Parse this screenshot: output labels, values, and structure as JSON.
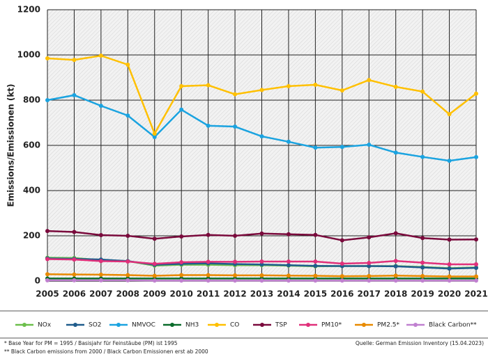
{
  "chart_data": {
    "type": "line",
    "y_label": "Emissions/Emissionen (kt)",
    "x": [
      2005,
      2006,
      2007,
      2008,
      2009,
      2010,
      2011,
      2012,
      2013,
      2014,
      2015,
      2016,
      2017,
      2018,
      2019,
      2020,
      2021
    ],
    "xlim": [
      2005,
      2021
    ],
    "xticks": [
      2005,
      2006,
      2007,
      2008,
      2009,
      2010,
      2011,
      2012,
      2013,
      2014,
      2015,
      2016,
      2017,
      2018,
      2019,
      2020,
      2021
    ],
    "ylim": [
      0,
      1200
    ],
    "yticks": [
      0,
      200,
      400,
      600,
      800,
      1000,
      1200
    ],
    "grid": true,
    "series": [
      {
        "name": "NOx",
        "color": "#6cbf4b",
        "values": [
          103,
          102,
          92,
          88,
          68,
          72,
          72,
          70,
          70,
          68,
          65,
          66,
          66,
          66,
          62,
          57,
          60
        ]
      },
      {
        "name": "SO2",
        "color": "#1f5c8c",
        "values": [
          100,
          98,
          95,
          88,
          72,
          76,
          78,
          75,
          73,
          70,
          67,
          66,
          66,
          65,
          60,
          55,
          58
        ]
      },
      {
        "name": "NMVOC",
        "color": "#1aa3e0",
        "values": [
          800,
          822,
          775,
          732,
          637,
          758,
          687,
          683,
          640,
          616,
          590,
          593,
          603,
          568,
          549,
          532,
          548
        ]
      },
      {
        "name": "NH3",
        "color": "#0a6b2a",
        "values": [
          11,
          11,
          11,
          11,
          11,
          11,
          11,
          11,
          11,
          11,
          11,
          11,
          11,
          11,
          11,
          11,
          11
        ]
      },
      {
        "name": "CO",
        "color": "#ffc000",
        "values": [
          985,
          978,
          997,
          957,
          652,
          862,
          866,
          826,
          845,
          862,
          868,
          843,
          889,
          859,
          838,
          738,
          829
        ]
      },
      {
        "name": "TSP",
        "color": "#7a0a3c",
        "values": [
          221,
          217,
          203,
          200,
          187,
          197,
          204,
          200,
          210,
          207,
          204,
          180,
          193,
          211,
          190,
          183,
          184
        ]
      },
      {
        "name": "PM10*",
        "color": "#e0307a",
        "values": [
          97,
          95,
          88,
          86,
          76,
          83,
          85,
          85,
          86,
          86,
          86,
          77,
          80,
          89,
          81,
          74,
          74
        ]
      },
      {
        "name": "PM2.5*",
        "color": "#e88a00",
        "values": [
          30,
          29,
          28,
          26,
          23,
          26,
          26,
          25,
          25,
          24,
          23,
          21,
          22,
          24,
          22,
          20,
          20
        ]
      },
      {
        "name": "Black Carbon**",
        "color": "#c080d0",
        "values": [
          3,
          3,
          3,
          3,
          2,
          2,
          2,
          2,
          2,
          2,
          2,
          2,
          2,
          2,
          2,
          2,
          2
        ]
      }
    ],
    "notes": [
      "* Base Year for PM = 1995 / Basisjahr für Feinstäube (PM) ist 1995",
      "** Black Carbon emissions  from 2000 / Black Carbon Emissionen erst ab 2000"
    ],
    "source": "Quelle:  German Emission Inventory (15.04.2023)"
  }
}
